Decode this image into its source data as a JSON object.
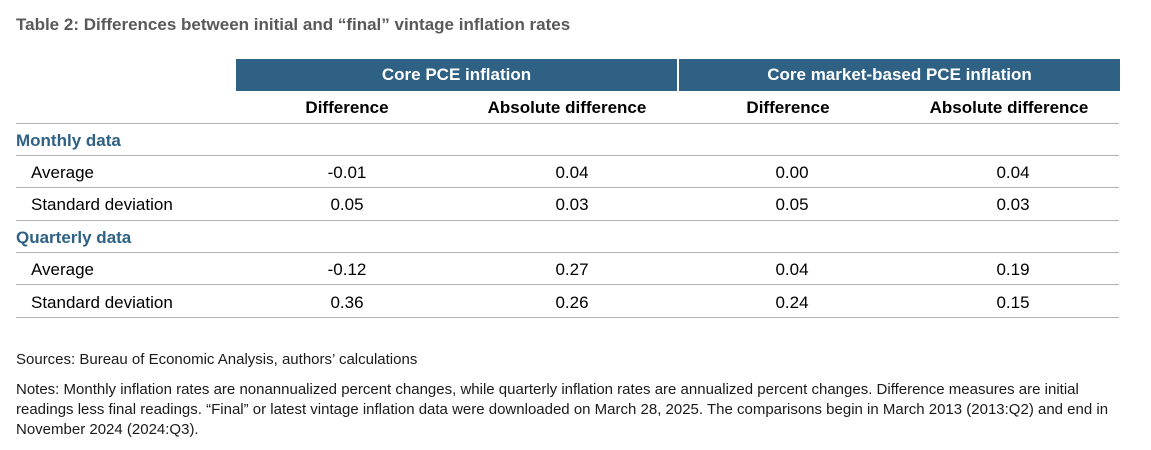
{
  "chart_data": {
    "type": "table",
    "title": "Table 2: Differences between initial and “final” vintage inflation rates",
    "header_color": "#2e6184",
    "column_groups": [
      "Core PCE inflation",
      "Core market-based PCE inflation"
    ],
    "sub_columns": [
      "Difference",
      "Absolute difference",
      "Difference",
      "Absolute difference"
    ],
    "sections": [
      {
        "label": "Monthly data",
        "rows": [
          {
            "label": "Average",
            "values": [
              "-0.01",
              "0.04",
              "0.00",
              "0.04"
            ]
          },
          {
            "label": "Standard deviation",
            "values": [
              "0.05",
              "0.03",
              "0.05",
              "0.03"
            ]
          }
        ]
      },
      {
        "label": "Quarterly data",
        "rows": [
          {
            "label": "Average",
            "values": [
              "-0.12",
              "0.27",
              "0.04",
              "0.19"
            ]
          },
          {
            "label": "Standard deviation",
            "values": [
              "0.36",
              "0.26",
              "0.24",
              "0.15"
            ]
          }
        ]
      }
    ],
    "sources": "Sources: Bureau of Economic Analysis, authors’ calculations",
    "notes": "Notes: Monthly inflation rates are nonannualized percent changes, while quarterly inflation rates are annualized percent changes. Difference measures are initial readings less final readings. “Final” or latest vintage inflation data were downloaded on March 28, 2025. The comparisons begin in March 2013 (2013:Q2) and end in November 2024 (2024:Q3)."
  }
}
